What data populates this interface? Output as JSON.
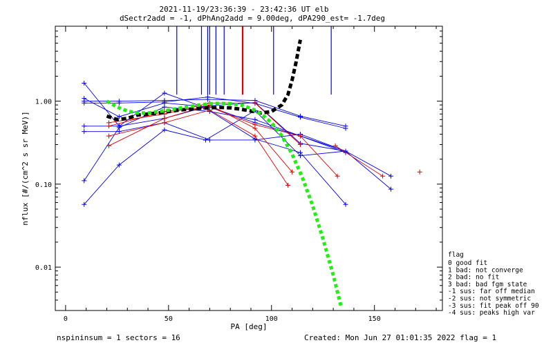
{
  "header": {
    "title_line1": "2021-11-19/23:36:39 - 23:42:36 UT elb",
    "title_line2": "dSectr2add = -1, dPhAng2add = 9.00deg, dPA290_est=  -1.7deg"
  },
  "footer": {
    "left": "nspininsum =  1  sectors = 16",
    "right": "Created: Mon Jun 27 01:01:35 2022   flag = 1"
  },
  "legend": {
    "title": "flag",
    "entries": [
      " 0 good fit",
      " 1 bad: not converge",
      " 2 bad: no fit",
      " 3 bad: bad fgm state",
      "-1 sus: far off median",
      "-2 sus: not symmetric",
      "-3 sus: fit peak off 90",
      "-4 sus: peaks high var"
    ]
  },
  "colors": {
    "blue": "#0000ee",
    "red": "#dd0000",
    "black": "#000000",
    "green": "#22ee11"
  },
  "chart_data": {
    "type": "line",
    "xlabel": "PA [deg]",
    "ylabel": "nflux [#/(cm^2 s sr MeV)]",
    "xlim": [
      -5,
      183
    ],
    "ylim": [
      0.003,
      8.0
    ],
    "yscale": "log",
    "xticks": [
      0,
      50,
      100,
      150
    ],
    "xtick_labels": [
      "0",
      "50",
      "100",
      "150"
    ],
    "yticks": [
      0.01,
      0.1,
      1.0
    ],
    "ytick_labels": [
      "0.01",
      "0.10",
      "1.00"
    ],
    "series": [
      {
        "color": "blue",
        "x": [
          9,
          26,
          48,
          67,
          92,
          114,
          136
        ],
        "y": [
          1.65,
          0.5,
          1.25,
          0.85,
          0.35,
          0.24,
          0.057
        ]
      },
      {
        "color": "blue",
        "x": [
          9,
          26,
          48,
          70,
          92,
          114,
          136
        ],
        "y": [
          1.08,
          0.65,
          0.95,
          0.85,
          0.55,
          0.38,
          0.24
        ]
      },
      {
        "color": "blue",
        "x": [
          9,
          26,
          48,
          69,
          92,
          114,
          136
        ],
        "y": [
          1.0,
          1.0,
          1.02,
          1.05,
          1.02,
          0.66,
          0.5
        ]
      },
      {
        "color": "blue",
        "x": [
          9,
          26,
          48,
          69,
          92,
          114,
          136
        ],
        "y": [
          0.95,
          0.95,
          0.98,
          1.12,
          0.94,
          0.64,
          0.47
        ]
      },
      {
        "color": "blue",
        "x": [
          9,
          26,
          48,
          70,
          92,
          114,
          136
        ],
        "y": [
          0.5,
          0.5,
          0.62,
          0.88,
          0.96,
          0.31,
          0.25
        ]
      },
      {
        "color": "blue",
        "x": [
          9,
          26,
          48,
          70,
          92,
          114,
          136
        ],
        "y": [
          0.43,
          0.43,
          0.55,
          0.34,
          0.34,
          0.4,
          0.25
        ]
      },
      {
        "color": "blue",
        "x": [
          9,
          26,
          48,
          70,
          92,
          114,
          136,
          158
        ],
        "y": [
          0.11,
          0.48,
          0.85,
          0.75,
          0.6,
          0.38,
          0.25,
          0.125
        ]
      },
      {
        "color": "blue",
        "x": [
          9,
          26,
          48,
          68,
          92,
          114,
          136,
          158
        ],
        "y": [
          0.057,
          0.17,
          0.45,
          0.34,
          0.77,
          0.22,
          0.25,
          0.087
        ]
      },
      {
        "color": "red",
        "x": [
          21,
          48,
          70,
          92,
          110
        ],
        "y": [
          0.29,
          0.62,
          0.9,
          0.47,
          0.14
        ]
      },
      {
        "color": "red",
        "x": [
          21,
          48,
          70,
          92,
          108
        ],
        "y": [
          0.38,
          0.55,
          0.78,
          0.38,
          0.097
        ]
      },
      {
        "color": "red",
        "x": [
          21,
          48,
          70,
          92,
          114,
          132
        ],
        "y": [
          0.5,
          0.75,
          0.85,
          0.52,
          0.38,
          0.125
        ]
      },
      {
        "color": "red",
        "x": [
          21,
          48,
          70,
          92,
          114
        ],
        "y": [
          0.55,
          0.7,
          0.95,
          0.95,
          0.3
        ]
      },
      {
        "color": "red",
        "x": [
          131,
          154
        ],
        "y": [
          0.29,
          0.125
        ]
      },
      {
        "color": "red",
        "x": [
          172
        ],
        "y": [
          0.14
        ]
      }
    ],
    "fits": [
      {
        "color": "black",
        "x": [
          20,
          25,
          30,
          35,
          40,
          45,
          50,
          55,
          60,
          65,
          70,
          75,
          80,
          85,
          90,
          95,
          100,
          105,
          108,
          110,
          112,
          114
        ],
        "y": [
          0.66,
          0.6,
          0.62,
          0.68,
          0.7,
          0.72,
          0.75,
          0.78,
          0.8,
          0.82,
          0.83,
          0.84,
          0.83,
          0.8,
          0.76,
          0.72,
          0.75,
          0.9,
          1.2,
          1.8,
          3.0,
          5.5
        ]
      },
      {
        "color": "green",
        "x": [
          20,
          25,
          30,
          35,
          40,
          45,
          50,
          55,
          60,
          65,
          70,
          75,
          80,
          85,
          90,
          95,
          100,
          105,
          110,
          115,
          120,
          125,
          130,
          134
        ],
        "y": [
          1.0,
          0.85,
          0.76,
          0.72,
          0.72,
          0.75,
          0.78,
          0.82,
          0.86,
          0.9,
          0.93,
          0.94,
          0.93,
          0.9,
          0.82,
          0.7,
          0.55,
          0.38,
          0.23,
          0.12,
          0.055,
          0.022,
          0.008,
          0.0032
        ]
      }
    ],
    "vlines": [
      {
        "color": "blue",
        "x": 54
      },
      {
        "color": "blue",
        "x": 66
      },
      {
        "color": "blue",
        "x": 69
      },
      {
        "color": "blue",
        "x": 70
      },
      {
        "color": "blue",
        "x": 73
      },
      {
        "color": "blue",
        "x": 77
      },
      {
        "color": "red",
        "x": 86
      },
      {
        "color": "blue",
        "x": 101
      },
      {
        "color": "blue",
        "x": 129
      }
    ]
  }
}
